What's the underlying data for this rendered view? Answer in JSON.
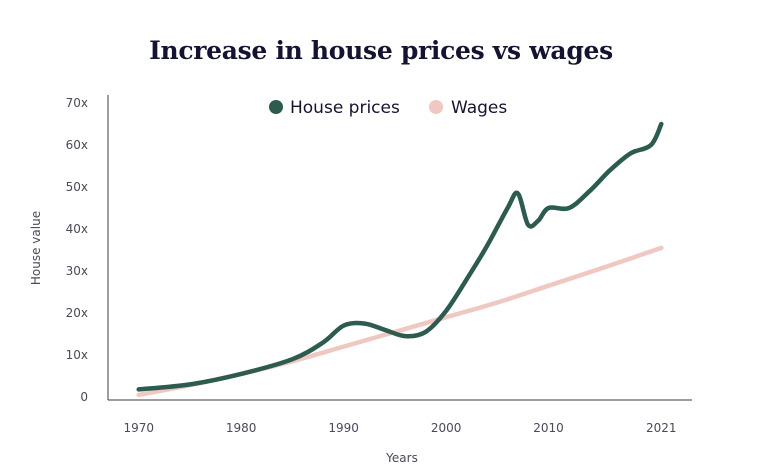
{
  "chart_data": {
    "type": "line",
    "title": "Increase in house prices vs wages",
    "xlabel": "Years",
    "ylabel": "House value",
    "xlim": [
      1967,
      2024
    ],
    "ylim": [
      0,
      70
    ],
    "x_ticks": [
      {
        "value": 1970,
        "label": "1970"
      },
      {
        "value": 1980,
        "label": "1980"
      },
      {
        "value": 1990,
        "label": "1990"
      },
      {
        "value": 2000,
        "label": "2000"
      },
      {
        "value": 2010,
        "label": "2010"
      },
      {
        "value": 2021,
        "label": "2021"
      }
    ],
    "y_ticks": [
      {
        "value": 0,
        "label": "0"
      },
      {
        "value": 10,
        "label": "10x"
      },
      {
        "value": 20,
        "label": "20x"
      },
      {
        "value": 30,
        "label": "30x"
      },
      {
        "value": 40,
        "label": "40x"
      },
      {
        "value": 50,
        "label": "50x"
      },
      {
        "value": 60,
        "label": "60x"
      },
      {
        "value": 70,
        "label": "70x"
      }
    ],
    "legend_position": "top-center",
    "series": [
      {
        "name": "House prices",
        "color": "#2d5b50",
        "points": [
          [
            1970,
            1.8
          ],
          [
            1975,
            3.0
          ],
          [
            1980,
            5.5
          ],
          [
            1985,
            9.0
          ],
          [
            1988,
            13.0
          ],
          [
            1990,
            17.0
          ],
          [
            1992,
            17.5
          ],
          [
            1994,
            16.0
          ],
          [
            1996,
            14.5
          ],
          [
            1998,
            15.5
          ],
          [
            2000,
            20.5
          ],
          [
            2002,
            28.0
          ],
          [
            2004,
            36.0
          ],
          [
            2006,
            45.0
          ],
          [
            2007,
            48.5
          ],
          [
            2008,
            41.0
          ],
          [
            2009,
            42.0
          ],
          [
            2010,
            45.0
          ],
          [
            2012,
            45.0
          ],
          [
            2014,
            49.0
          ],
          [
            2016,
            54.0
          ],
          [
            2018,
            58.0
          ],
          [
            2020,
            60.0
          ],
          [
            2021,
            65.0
          ]
        ]
      },
      {
        "name": "Wages",
        "color": "#efc8c2",
        "points": [
          [
            1970,
            0.5
          ],
          [
            1975,
            2.8
          ],
          [
            1980,
            5.5
          ],
          [
            1985,
            8.5
          ],
          [
            1990,
            12.0
          ],
          [
            1995,
            15.5
          ],
          [
            2000,
            19.0
          ],
          [
            2005,
            22.5
          ],
          [
            2010,
            26.5
          ],
          [
            2015,
            30.5
          ],
          [
            2021,
            35.5
          ]
        ]
      }
    ]
  }
}
